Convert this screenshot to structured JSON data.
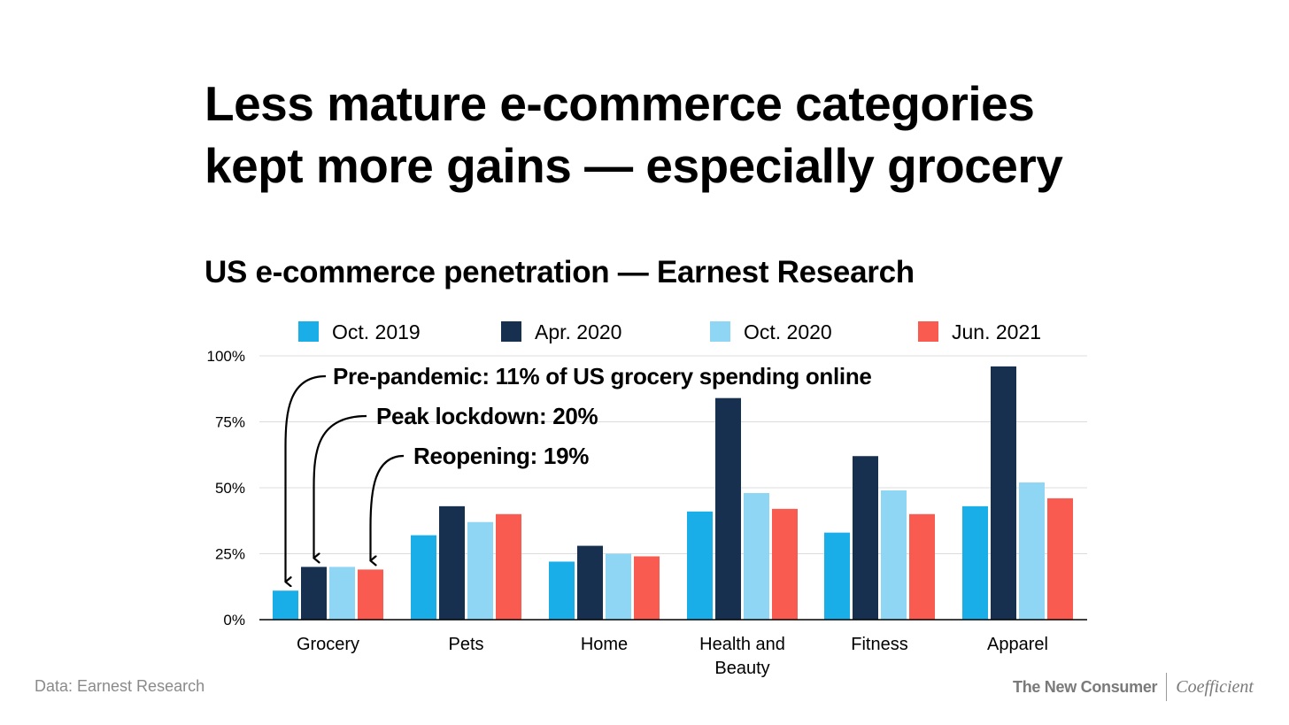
{
  "title_lines": [
    "Less mature e-commerce categories",
    "kept more gains — especially grocery"
  ],
  "source": "Data: Earnest Research",
  "brand": {
    "primary": "The New Consumer",
    "secondary": "Coefficient"
  },
  "chart_data": {
    "type": "bar",
    "title": "US e-commerce penetration — Earnest Research",
    "categories": [
      [
        "Grocery"
      ],
      [
        "Pets"
      ],
      [
        "Home"
      ],
      [
        "Health and",
        "Beauty"
      ],
      [
        "Fitness"
      ],
      [
        "Apparel"
      ]
    ],
    "series": [
      {
        "name": "Oct. 2019",
        "color": "#1aaee9",
        "values": [
          11,
          32,
          22,
          41,
          33,
          43
        ]
      },
      {
        "name": "Apr. 2020",
        "color": "#18304f",
        "values": [
          20,
          43,
          28,
          84,
          62,
          96
        ]
      },
      {
        "name": "Oct. 2020",
        "color": "#8fd5f4",
        "values": [
          20,
          37,
          25,
          48,
          49,
          52
        ]
      },
      {
        "name": "Jun. 2021",
        "color": "#f95b51",
        "values": [
          19,
          40,
          24,
          42,
          40,
          46
        ]
      }
    ],
    "ylim": [
      0,
      100
    ],
    "yticks": [
      0,
      25,
      50,
      75,
      100
    ],
    "ytick_labels": [
      "0%",
      "25%",
      "50%",
      "75%",
      "100%"
    ],
    "xlabel": "",
    "ylabel": "",
    "grid": true,
    "legend_position": "top",
    "annotations": [
      {
        "text": "Pre-pandemic: 11% of US grocery spending online",
        "category": 0,
        "series": 0
      },
      {
        "text": "Peak lockdown: 20%",
        "category": 0,
        "series": 1
      },
      {
        "text": "Reopening: 19%",
        "category": 0,
        "series": 3
      }
    ]
  }
}
